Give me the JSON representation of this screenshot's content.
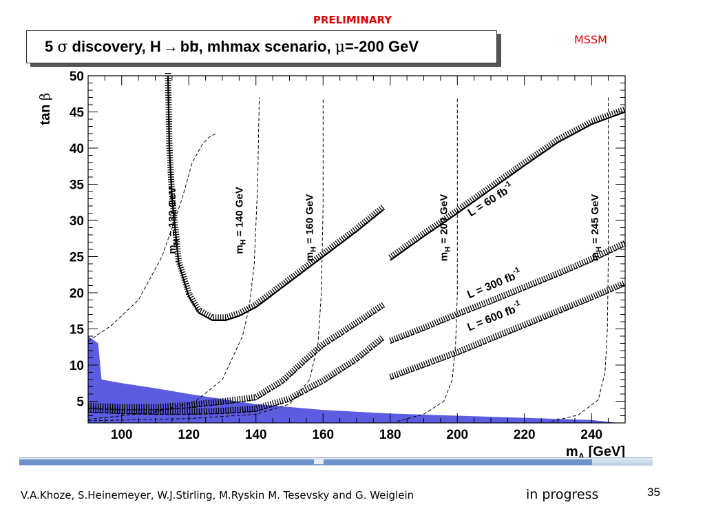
{
  "header": {
    "preliminary": "PRELIMINARY",
    "mssm": "MSSM"
  },
  "footer": {
    "authors": "V.A.Khoze, S.Heinemeyer, W.J.Stirling, M.Ryskin M. Tesevsky and G. Weiglein",
    "status": "in progress",
    "page_number": "35"
  },
  "chart_data": {
    "type": "line",
    "title": "5 σ discovery, H→ bb̄, mhmax scenario, μ=-200 GeV",
    "title_parts": {
      "lead": "5 ",
      "sigma": "σ",
      "mid": " discovery, H",
      "arrow": "→",
      "bb": "bb",
      "tail": ", mhmax scenario, ",
      "mu": "μ",
      "end": "=-200 GeV"
    },
    "xlabel": "m",
    "xlabel_sub": "A",
    "xlabel_unit": " [GeV]",
    "ylabel": "tan",
    "ylabel_greek": "β",
    "xlim": [
      90,
      250
    ],
    "ylim": [
      2,
      50
    ],
    "xticks": [
      100,
      120,
      140,
      160,
      180,
      200,
      220,
      240
    ],
    "yticks": [
      5,
      10,
      15,
      20,
      25,
      30,
      35,
      40,
      45,
      50
    ],
    "colors": {
      "excluded_region": "#5b5ce0",
      "curves": "#000000",
      "title_red": "#e00000"
    },
    "excluded_region": {
      "x": [
        90,
        90,
        93,
        94,
        100,
        110,
        120,
        130,
        140,
        160,
        180,
        200,
        220,
        240,
        248,
        90
      ],
      "y": [
        2,
        14,
        13,
        8,
        7.5,
        6.8,
        6.0,
        5.3,
        4.6,
        3.8,
        3.3,
        3.0,
        2.7,
        2.4,
        2,
        2
      ]
    },
    "mh_contours": [
      {
        "label": "m",
        "sub": "H",
        "eq": " = 132 GeV",
        "label_x": 116,
        "label_y": 30,
        "x": [
          90,
          97,
          105,
          112,
          118,
          121,
          124,
          126,
          128
        ],
        "y": [
          13.3,
          15.5,
          19,
          25,
          33,
          38,
          40.5,
          41.5,
          42
        ]
      },
      {
        "label": "m",
        "sub": "H",
        "eq": " = 140 GeV",
        "label_x": 136,
        "label_y": 30,
        "x": [
          90,
          110,
          122,
          130,
          136,
          138,
          139.5,
          140.5,
          141
        ],
        "y": [
          2.5,
          3.5,
          5,
          8,
          14,
          18,
          24,
          35,
          47
        ]
      },
      {
        "label": "m",
        "sub": "H",
        "eq": " = 160 GeV",
        "label_x": 157,
        "label_y": 29,
        "x": [
          90,
          120,
          140,
          150,
          156,
          158.5,
          159.5,
          160,
          160
        ],
        "y": [
          2.3,
          2.6,
          3.2,
          4.6,
          8,
          13,
          20,
          32,
          47
        ]
      },
      {
        "label": "m",
        "sub": "H",
        "eq": " = 200 GeV",
        "label_x": 197,
        "label_y": 29,
        "x": [
          182,
          190,
          196,
          198.5,
          199.5,
          200,
          200,
          200
        ],
        "y": [
          2.2,
          3.2,
          5,
          8,
          13,
          20,
          33,
          47
        ]
      },
      {
        "label": "m",
        "sub": "H",
        "eq": " = 245 GeV",
        "label_x": 242,
        "label_y": 29,
        "x": [
          228,
          236,
          242,
          244,
          244.7,
          245,
          245,
          245
        ],
        "y": [
          2.2,
          3.1,
          5.2,
          9,
          15,
          25,
          38,
          47
        ]
      }
    ],
    "discovery_contours": [
      {
        "label": "L = 60 fb",
        "exp": "-1",
        "label_x": 204,
        "label_y": 30.5,
        "label_angle_data": true,
        "segments": [
          {
            "x": [
              113.8,
              114.2,
              115,
              117,
              120,
              123,
              127,
              131,
              135,
              140,
              150,
              160,
              170,
              178
            ],
            "y": [
              50,
              40,
              33,
              24,
              19.5,
              17.2,
              16.2,
              16.2,
              16.8,
              18,
              21.5,
              25,
              28.5,
              31.5
            ]
          },
          {
            "x": [
              180,
              190,
              200,
              210,
              220,
              230,
              240,
              250
            ],
            "y": [
              24.5,
              27.8,
              31,
              34.3,
              37.6,
              40.8,
              43.3,
              45
            ]
          }
        ]
      },
      {
        "label": "L = 300 fb",
        "exp": "-1",
        "label_x": 203.5,
        "label_y": 19.2,
        "label_angle_data": true,
        "segments": [
          {
            "x": [
              90,
              100,
              110,
              120,
              130,
              140,
              148,
              155,
              160,
              170,
              178
            ],
            "y": [
              4,
              3.8,
              3.8,
              4.1,
              4.6,
              5.2,
              7.5,
              10.5,
              12.5,
              15.5,
              18
            ]
          },
          {
            "x": [
              180,
              190,
              200,
              210,
              220,
              230,
              240,
              250
            ],
            "y": [
              13,
              14.8,
              16.7,
              18.5,
              20.4,
              22.3,
              24.3,
              26.5
            ]
          }
        ]
      },
      {
        "label": "L = 600 fb",
        "exp": "-1",
        "label_x": 203.5,
        "label_y": 14.7,
        "label_angle_data": true,
        "segments": [
          {
            "x": [
              90,
              100,
              110,
              120,
              130,
              140,
              150,
              160,
              170,
              178
            ],
            "y": [
              3.5,
              3.3,
              3.2,
              3.2,
              3.3,
              3.6,
              5,
              7.5,
              10.5,
              13.5
            ]
          },
          {
            "x": [
              180,
              190,
              200,
              210,
              220,
              230,
              240,
              250
            ],
            "y": [
              8,
              9.7,
              11.4,
              13.3,
              15.2,
              17.1,
              19,
              21
            ]
          }
        ]
      }
    ]
  }
}
